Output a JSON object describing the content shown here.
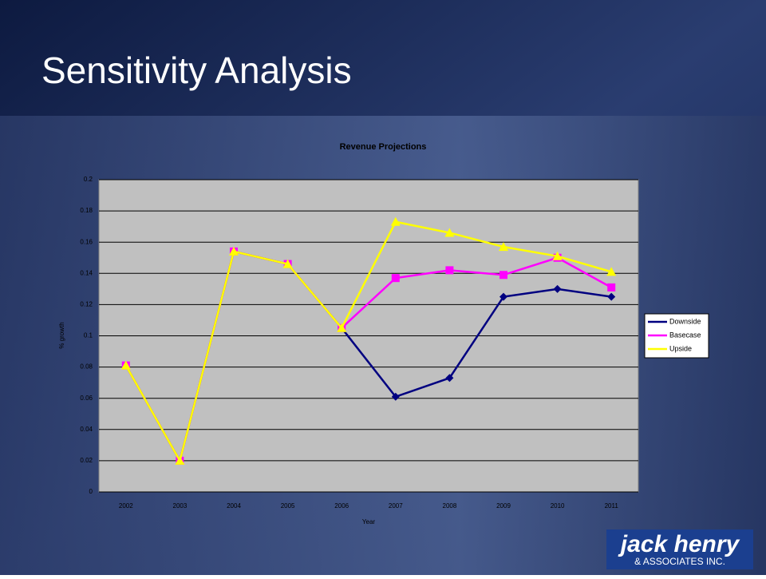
{
  "slide_title": "Sensitivity Analysis",
  "logo": {
    "line1": "jack henry",
    "line2": "& ASSOCIATES INC."
  },
  "chart_data": {
    "type": "line",
    "title": "Revenue Projections",
    "x_label": "Year",
    "y_label": "% growth",
    "categories": [
      "2002",
      "2003",
      "2004",
      "2005",
      "2006",
      "2007",
      "2008",
      "2009",
      "2010",
      "2011"
    ],
    "series": [
      {
        "name": "Downside",
        "color": "#000080",
        "marker": "diamond",
        "values": [
          0.081,
          0.02,
          0.154,
          0.146,
          0.105,
          0.061,
          0.073,
          0.125,
          0.13,
          0.125
        ]
      },
      {
        "name": "Basecase",
        "color": "#ff00ff",
        "marker": "square",
        "values": [
          0.081,
          0.02,
          0.154,
          0.146,
          0.105,
          0.137,
          0.142,
          0.139,
          0.15,
          0.131
        ]
      },
      {
        "name": "Upside",
        "color": "#ffff00",
        "marker": "triangle",
        "values": [
          0.081,
          0.02,
          0.154,
          0.146,
          0.105,
          0.173,
          0.166,
          0.157,
          0.151,
          0.141
        ]
      }
    ],
    "ylim": [
      0,
      0.2
    ],
    "yticks": [
      0,
      0.02,
      0.04,
      0.06,
      0.08,
      0.1,
      0.12,
      0.14,
      0.16,
      0.18,
      0.2
    ],
    "grid": true,
    "legend": "right"
  }
}
